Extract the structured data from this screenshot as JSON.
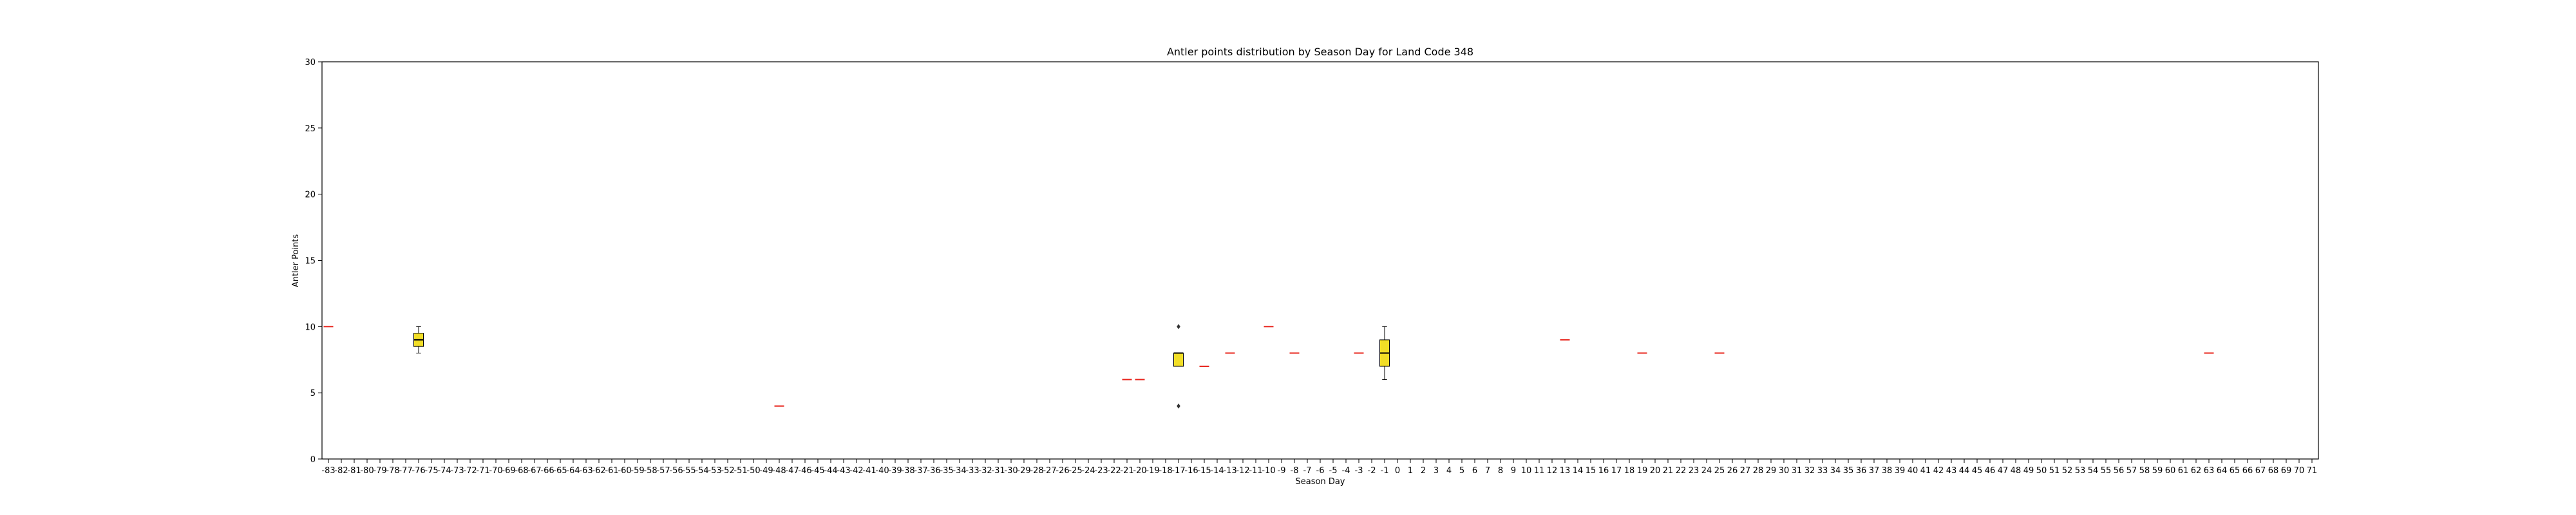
{
  "chart_data": {
    "type": "box",
    "title": "Antler points distribution by Season Day for Land Code 348",
    "xlabel": "Season Day",
    "ylabel": "Antler Points",
    "ylim": [
      0,
      30
    ],
    "yticks": [
      0,
      5,
      10,
      15,
      20,
      25,
      30
    ],
    "x_categories_range": [
      -83,
      71
    ],
    "grid": false,
    "box_color": "#f2de26",
    "median_color": "#e8261e",
    "boxes": [
      {
        "day": -83,
        "min": 10,
        "q1": 10,
        "median": 10,
        "q3": 10,
        "max": 10,
        "outliers": []
      },
      {
        "day": -76,
        "min": 8,
        "q1": 8.5,
        "median": 9,
        "q3": 9.5,
        "max": 10,
        "outliers": []
      },
      {
        "day": -48,
        "min": 4,
        "q1": 4,
        "median": 4,
        "q3": 4,
        "max": 4,
        "outliers": []
      },
      {
        "day": -21,
        "min": 6,
        "q1": 6,
        "median": 6,
        "q3": 6,
        "max": 6,
        "outliers": []
      },
      {
        "day": -20,
        "min": 6,
        "q1": 6,
        "median": 6,
        "q3": 6,
        "max": 6,
        "outliers": []
      },
      {
        "day": -17,
        "min": 7,
        "q1": 7,
        "median": 8,
        "q3": 8,
        "max": 8,
        "outliers": [
          10,
          4
        ]
      },
      {
        "day": -15,
        "min": 7,
        "q1": 7,
        "median": 7,
        "q3": 7,
        "max": 7,
        "outliers": []
      },
      {
        "day": -13,
        "min": 8,
        "q1": 8,
        "median": 8,
        "q3": 8,
        "max": 8,
        "outliers": []
      },
      {
        "day": -10,
        "min": 10,
        "q1": 10,
        "median": 10,
        "q3": 10,
        "max": 10,
        "outliers": []
      },
      {
        "day": -8,
        "min": 8,
        "q1": 8,
        "median": 8,
        "q3": 8,
        "max": 8,
        "outliers": []
      },
      {
        "day": -3,
        "min": 8,
        "q1": 8,
        "median": 8,
        "q3": 8,
        "max": 8,
        "outliers": []
      },
      {
        "day": -1,
        "min": 6,
        "q1": 7,
        "median": 8,
        "q3": 9,
        "max": 10,
        "outliers": []
      },
      {
        "day": 13,
        "min": 9,
        "q1": 9,
        "median": 9,
        "q3": 9,
        "max": 9,
        "outliers": []
      },
      {
        "day": 19,
        "min": 8,
        "q1": 8,
        "median": 8,
        "q3": 8,
        "max": 8,
        "outliers": []
      },
      {
        "day": 25,
        "min": 8,
        "q1": 8,
        "median": 8,
        "q3": 8,
        "max": 8,
        "outliers": []
      },
      {
        "day": 63,
        "min": 8,
        "q1": 8,
        "median": 8,
        "q3": 8,
        "max": 8,
        "outliers": []
      }
    ]
  }
}
